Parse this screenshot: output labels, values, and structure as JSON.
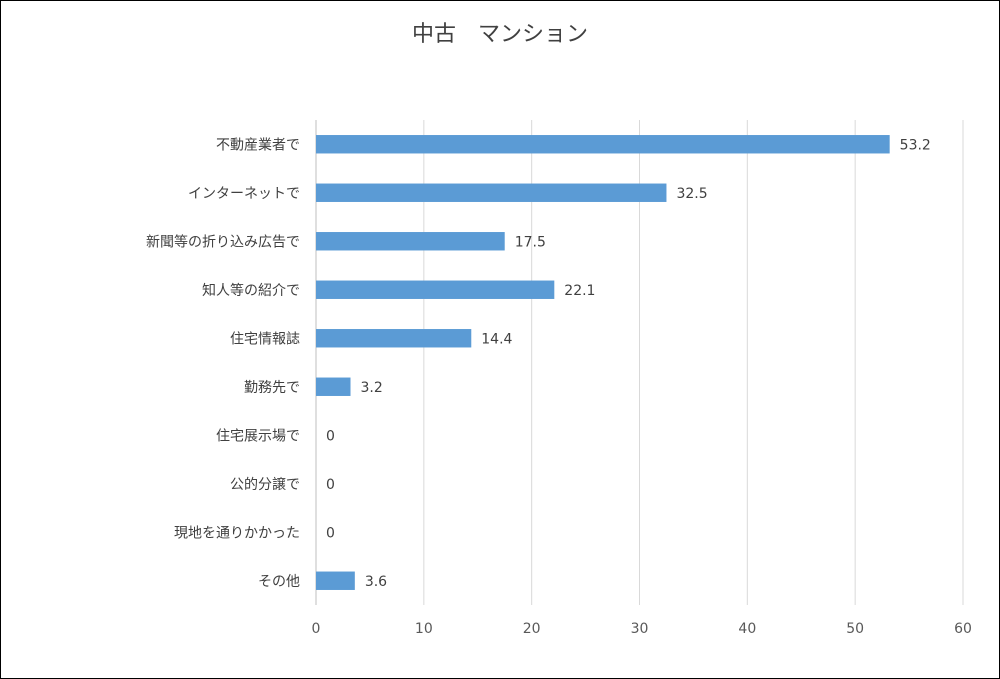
{
  "chart_data": {
    "type": "bar",
    "orientation": "horizontal",
    "title": "中古　マンション",
    "categories": [
      "不動産業者で",
      "インターネットで",
      "新聞等の折り込み広告で",
      "知人等の紹介で",
      "住宅情報誌",
      "勤務先で",
      "住宅展示場で",
      "公的分譲で",
      "現地を通りかかった",
      "その他"
    ],
    "values": [
      53.2,
      32.5,
      17.5,
      22.1,
      14.4,
      3.2,
      0,
      0,
      0,
      3.6
    ],
    "xlim": [
      0,
      60
    ],
    "xticks": [
      0,
      10,
      20,
      30,
      40,
      50,
      60
    ],
    "grid": "vertical",
    "legend": "none",
    "bar_color": "#5b9bd5",
    "grid_color": "#d9d9d9"
  }
}
